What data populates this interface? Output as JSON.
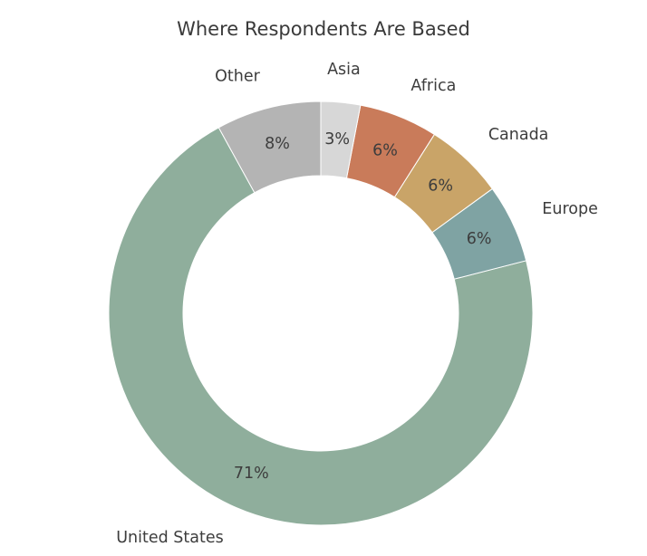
{
  "chart_data": {
    "type": "pie",
    "title": "Where Respondents Are Based",
    "donut": true,
    "start": "top, counter-clockwise",
    "slices": [
      {
        "label": "Other",
        "value": 8,
        "pct_label": "8%",
        "color": "#b4b4b4"
      },
      {
        "label": "United States",
        "value": 71,
        "pct_label": "71%",
        "color": "#8fae9c"
      },
      {
        "label": "Europe",
        "value": 6,
        "pct_label": "6%",
        "color": "#7fa3a3"
      },
      {
        "label": "Canada",
        "value": 6,
        "pct_label": "6%",
        "color": "#c9a468"
      },
      {
        "label": "Africa",
        "value": 6,
        "pct_label": "6%",
        "color": "#c97b5a"
      },
      {
        "label": "Asia",
        "value": 3,
        "pct_label": "3%",
        "color": "#d7d7d7"
      }
    ]
  }
}
